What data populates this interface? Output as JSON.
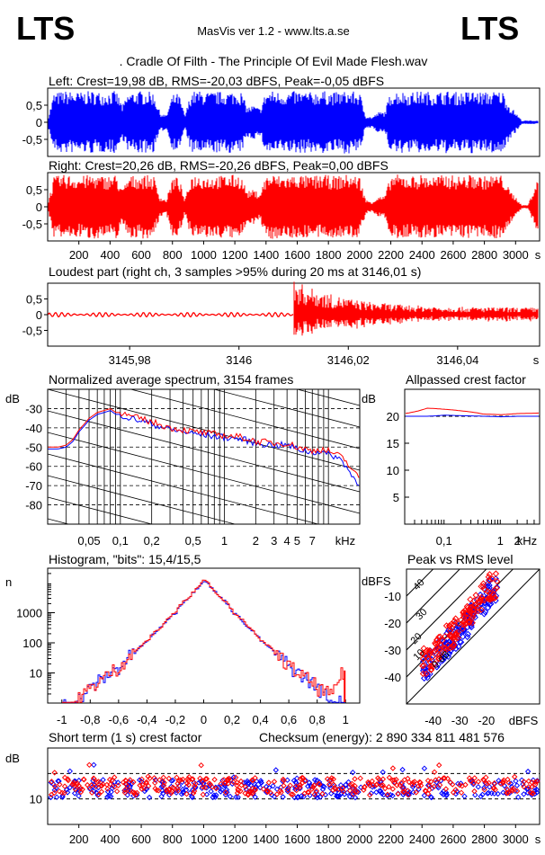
{
  "header": {
    "logo_left": "LTS",
    "logo_right": "LTS",
    "app_title": "MasVis ver 1.2 - www.lts.a.se",
    "file_title": ". Cradle Of Filth - The Principle Of Evil Made Flesh.wav"
  },
  "colors": {
    "left": "#0000ff",
    "right": "#ff0000",
    "grid": "#000000"
  },
  "waveform_left": {
    "title": "Left: Crest=19,98 dB, RMS=-20,03 dBFS, Peak=-0,05 dBFS",
    "y_ticks": [
      "0,5",
      "0",
      "-0,5"
    ],
    "chart_data": {
      "type": "area",
      "channel": "left",
      "ylim": [
        -1,
        1
      ],
      "xlim": [
        0,
        3154
      ],
      "envelope_x": [
        0,
        40,
        80,
        120,
        160,
        200,
        240,
        280,
        320,
        360,
        400,
        440,
        480,
        520,
        560,
        600,
        640,
        680,
        720,
        760,
        800,
        840,
        880,
        920,
        960,
        1000,
        1040,
        1080,
        1120,
        1160,
        1200,
        1240,
        1280,
        1320,
        1360,
        1400,
        1440,
        1480,
        1520,
        1560,
        1600,
        1640,
        1680,
        1720,
        1760,
        1800,
        1840,
        1880,
        1920,
        1960,
        2000,
        2040,
        2080,
        2120,
        2160,
        2200,
        2240,
        2280,
        2320,
        2360,
        2400,
        2440,
        2480,
        2520,
        2560,
        2600,
        2640,
        2680,
        2720,
        2760,
        2800,
        2840,
        2880,
        2920,
        2960,
        3000,
        3040,
        3080,
        3120,
        3154
      ],
      "envelope_peak": [
        0.1,
        0.85,
        0.9,
        0.92,
        0.9,
        0.88,
        0.9,
        0.92,
        0.9,
        0.88,
        0.9,
        0.92,
        0.5,
        0.88,
        0.9,
        0.92,
        0.9,
        0.88,
        0.3,
        0.2,
        0.8,
        0.85,
        0.2,
        0.9,
        0.92,
        0.9,
        0.88,
        0.9,
        0.9,
        0.9,
        0.92,
        0.9,
        0.45,
        0.5,
        0.4,
        0.9,
        0.92,
        0.9,
        0.88,
        0.9,
        0.92,
        0.9,
        0.88,
        0.9,
        0.92,
        0.9,
        0.88,
        0.9,
        0.92,
        0.9,
        0.88,
        0.2,
        0.15,
        0.3,
        0.3,
        0.9,
        0.92,
        0.9,
        0.88,
        0.9,
        0.92,
        0.9,
        0.88,
        0.9,
        0.92,
        0.9,
        0.88,
        0.9,
        0.92,
        0.9,
        0.88,
        0.9,
        0.92,
        0.9,
        0.5,
        0.3,
        0.05,
        0.05,
        0.05,
        0.05
      ]
    }
  },
  "waveform_right": {
    "title": "Right: Crest=20,26 dB, RMS=-20,26 dBFS, Peak=0,00 dBFS",
    "y_ticks": [
      "0,5",
      "0",
      "-0,5"
    ],
    "x_ticks": [
      "200",
      "400",
      "600",
      "800",
      "1000",
      "1200",
      "1400",
      "1600",
      "1800",
      "2000",
      "2200",
      "2400",
      "2600",
      "2800",
      "3000"
    ],
    "x_unit": "s",
    "chart_data": {
      "type": "area",
      "channel": "right",
      "ylim": [
        -1,
        1
      ],
      "xlim": [
        0,
        3154
      ],
      "envelope_x": [
        0,
        40,
        80,
        120,
        160,
        200,
        240,
        280,
        320,
        360,
        400,
        440,
        480,
        520,
        560,
        600,
        640,
        680,
        720,
        760,
        800,
        840,
        880,
        920,
        960,
        1000,
        1040,
        1080,
        1120,
        1160,
        1200,
        1240,
        1280,
        1320,
        1360,
        1400,
        1440,
        1480,
        1520,
        1560,
        1600,
        1640,
        1680,
        1720,
        1760,
        1800,
        1840,
        1880,
        1920,
        1960,
        2000,
        2040,
        2080,
        2120,
        2160,
        2200,
        2240,
        2280,
        2320,
        2360,
        2400,
        2440,
        2480,
        2520,
        2560,
        2600,
        2640,
        2680,
        2720,
        2760,
        2800,
        2840,
        2880,
        2920,
        2960,
        3000,
        3040,
        3080,
        3120,
        3154
      ],
      "envelope_peak": [
        0.1,
        0.88,
        0.92,
        0.95,
        0.92,
        0.9,
        0.92,
        0.95,
        0.92,
        0.9,
        0.92,
        0.95,
        0.5,
        0.9,
        0.92,
        0.95,
        0.92,
        0.9,
        0.3,
        0.2,
        0.85,
        0.88,
        0.2,
        0.92,
        0.95,
        0.92,
        0.9,
        0.92,
        0.92,
        0.92,
        0.95,
        0.92,
        0.45,
        0.5,
        0.4,
        0.92,
        0.95,
        0.92,
        0.9,
        0.92,
        0.95,
        0.92,
        0.9,
        0.92,
        0.95,
        0.92,
        0.9,
        0.92,
        0.95,
        0.92,
        0.9,
        0.2,
        0.15,
        0.3,
        0.3,
        0.92,
        0.95,
        0.92,
        0.9,
        0.92,
        0.95,
        0.92,
        0.9,
        0.92,
        0.95,
        0.92,
        0.9,
        0.92,
        0.95,
        0.92,
        0.9,
        0.92,
        0.95,
        0.92,
        0.5,
        0.3,
        0.05,
        0.05,
        0.6,
        1.0
      ]
    }
  },
  "loudest": {
    "title": "Loudest part (right ch, 3 samples >95% during 20 ms at 3146,01 s)",
    "y_ticks": [
      "0,5",
      "0",
      "-0,5"
    ],
    "x_ticks": [
      "3145,98",
      "3146",
      "3146,02",
      "3146,04"
    ],
    "x_unit": "s",
    "chart_data": {
      "type": "line",
      "xlim": [
        3145.965,
        3146.055
      ],
      "ylim": [
        -1,
        1
      ],
      "onset_x": 3146.01,
      "pre_amplitude": 0.07,
      "post_peak": 0.9
    }
  },
  "spectrum": {
    "title": "Normalized average spectrum, 3154 frames",
    "y_unit": "dB",
    "y_ticks": [
      "-30",
      "-40",
      "-50",
      "-60",
      "-70",
      "-80"
    ],
    "x_ticks": [
      "0,05",
      "0,1",
      "0,2",
      "0,5",
      "1",
      "2",
      "3",
      "4",
      "5",
      "7"
    ],
    "x_unit": "kHz",
    "chart_data": {
      "type": "line",
      "xscale": "log",
      "xlim": [
        0.02,
        20
      ],
      "ylim": [
        -90,
        -20
      ],
      "x": [
        0.02,
        0.025,
        0.03,
        0.035,
        0.04,
        0.05,
        0.06,
        0.07,
        0.08,
        0.09,
        0.1,
        0.12,
        0.15,
        0.2,
        0.3,
        0.5,
        0.7,
        1,
        1.5,
        2,
        3,
        4,
        5,
        6,
        7,
        8,
        10,
        12,
        14,
        16,
        18,
        20
      ],
      "series": [
        {
          "values": [
            -51,
            -51,
            -50,
            -47,
            -42,
            -36,
            -33,
            -32,
            -31,
            -33,
            -33,
            -35,
            -36,
            -38,
            -41,
            -43,
            -44,
            -45,
            -46,
            -48,
            -49,
            -49,
            -51,
            -52,
            -53,
            -52,
            -54,
            -55,
            -58,
            -63,
            -67,
            -69
          ]
        },
        {
          "values": [
            -50,
            -50,
            -49,
            -46,
            -41,
            -35,
            -32,
            -31,
            -30,
            -32,
            -32,
            -34,
            -35,
            -37,
            -40,
            -42,
            -43,
            -44,
            -45,
            -47,
            -48,
            -48,
            -50,
            -51,
            -52,
            -51,
            -52,
            -54,
            -56,
            -60,
            -64,
            -66
          ]
        }
      ]
    }
  },
  "crest": {
    "title": "Allpassed crest factor",
    "y_unit": "dB",
    "y_ticks": [
      "20",
      "15",
      "10",
      "5"
    ],
    "x_ticks": [
      "0,1",
      "1",
      "2"
    ],
    "x_unit": "kHz",
    "chart_data": {
      "type": "line",
      "xscale": "log",
      "xlim": [
        0.02,
        5
      ],
      "ylim": [
        0,
        25
      ],
      "ref_line": 20,
      "x": [
        0.02,
        0.05,
        0.1,
        0.2,
        0.5,
        1,
        2,
        5
      ],
      "series": [
        {
          "values": [
            20,
            20,
            20.2,
            20.1,
            20,
            19.9,
            20,
            20
          ]
        },
        {
          "values": [
            20.5,
            21.5,
            21.3,
            21,
            20.4,
            20.3,
            20.5,
            20.6
          ]
        }
      ]
    }
  },
  "histogram": {
    "title": "Histogram, \"bits\": 15,4/15,5",
    "y_unit": "n",
    "y_ticks": [
      "1000",
      "100",
      "10"
    ],
    "x_ticks": [
      "-1",
      "-0,8",
      "-0,6",
      "-0,4",
      "-0,2",
      "0",
      "0,2",
      "0,4",
      "0,6",
      "0,8",
      "1"
    ],
    "chart_data": {
      "type": "line",
      "yscale": "log",
      "xlim": [
        -1.1,
        1.1
      ],
      "ylim": [
        1,
        30000
      ],
      "x": [
        -1,
        -0.9,
        -0.8,
        -0.7,
        -0.6,
        -0.5,
        -0.4,
        -0.3,
        -0.2,
        -0.1,
        -0.05,
        0,
        0.05,
        0.1,
        0.2,
        0.3,
        0.4,
        0.5,
        0.6,
        0.7,
        0.8,
        0.9,
        1
      ],
      "series": [
        {
          "values": [
            1,
            1,
            3,
            7,
            15,
            40,
            110,
            330,
            1000,
            3500,
            6500,
            12000,
            6500,
            3500,
            1000,
            330,
            110,
            40,
            15,
            7,
            3,
            1,
            1
          ]
        },
        {
          "values": [
            1,
            1,
            3,
            7,
            15,
            42,
            115,
            340,
            1050,
            3600,
            6700,
            13000,
            6700,
            3600,
            1050,
            340,
            115,
            42,
            15,
            7,
            3,
            1.5,
            12
          ]
        }
      ]
    }
  },
  "peak_rms": {
    "title": "Peak vs RMS level",
    "y_unit": "dBFS",
    "y_ticks": [
      "-10",
      "-20",
      "-30",
      "-40"
    ],
    "x_ticks": [
      "-40",
      "-30",
      "-20"
    ],
    "x_unit": "dBFS",
    "diag_labels": [
      "40",
      "30",
      "20",
      "10",
      "0 dB"
    ],
    "chart_data": {
      "type": "scatter",
      "xlim": [
        -50,
        0
      ],
      "ylim": [
        -50,
        0
      ],
      "x": [
        -42,
        -40,
        -38,
        -36,
        -35,
        -33,
        -32,
        -30,
        -29,
        -28,
        -27,
        -26,
        -25,
        -24,
        -23,
        -22,
        -21,
        -20,
        -19,
        -18
      ],
      "series": [
        {
          "values": [
            -36,
            -34,
            -31,
            -30,
            -28,
            -27,
            -25,
            -24,
            -22,
            -21,
            -20,
            -18,
            -17,
            -16,
            -14,
            -13,
            -12,
            -11,
            -9,
            -8
          ]
        },
        {
          "values": [
            -34,
            -33,
            -30,
            -28,
            -26,
            -25,
            -23,
            -22,
            -20,
            -19,
            -17,
            -16,
            -15,
            -13,
            -12,
            -11,
            -9,
            -8,
            -7,
            -6
          ]
        }
      ]
    }
  },
  "shortterm": {
    "title": "Short term (1 s) crest factor",
    "checksum": "Checksum (energy):  2 890 334 811 481 576",
    "y_unit": "dB",
    "y_ticks": [
      "10"
    ],
    "x_ticks": [
      "200",
      "400",
      "600",
      "800",
      "1000",
      "1200",
      "1400",
      "1600",
      "1800",
      "2000",
      "2200",
      "2400",
      "2600",
      "2800",
      "3000"
    ],
    "x_unit": "s",
    "chart_data": {
      "type": "scatter",
      "xlim": [
        0,
        3154
      ],
      "ylim": [
        0,
        30
      ],
      "ref_lines": [
        10,
        20
      ],
      "mean_right": 15,
      "mean_left": 14
    }
  }
}
